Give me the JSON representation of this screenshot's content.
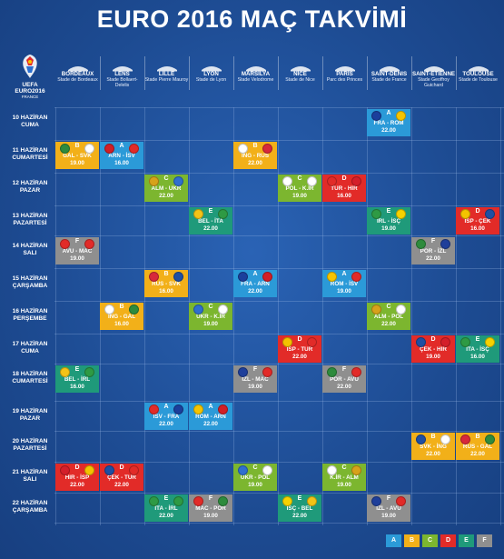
{
  "title": "EURO 2016 MAÇ TAKVİMİ",
  "logo": {
    "text": "UEFA EURO2016",
    "sub": "FRANCE"
  },
  "group_colors": {
    "A": "#2b9ad8",
    "B": "#f2b019",
    "C": "#7cb62f",
    "D": "#e22b28",
    "E": "#1f9a7a",
    "F": "#8f8f8f"
  },
  "venues": [
    {
      "city": "BORDEAUX",
      "stadium": "Stade de Bordeaux"
    },
    {
      "city": "LENS",
      "stadium": "Stade Bollaert-Delelis"
    },
    {
      "city": "LILLE",
      "stadium": "Stade Pierre Mauroy"
    },
    {
      "city": "LYON",
      "stadium": "Stade de Lyon"
    },
    {
      "city": "MARSİLYA",
      "stadium": "Stade Velodrome"
    },
    {
      "city": "NİCE",
      "stadium": "Stade de Nice"
    },
    {
      "city": "PARİS",
      "stadium": "Parc des Princes"
    },
    {
      "city": "SAINT-DENIS",
      "stadium": "Stade de France"
    },
    {
      "city": "SAINT-ETİENNE",
      "stadium": "Stade Geoffroy Guichard"
    },
    {
      "city": "TOULOUSE",
      "stadium": "Stade de Toulouse"
    }
  ],
  "days": [
    {
      "line1": "10 HAZİRAN",
      "line2": "CUMA"
    },
    {
      "line1": "11 HAZİRAN",
      "line2": "CUMARTESİ"
    },
    {
      "line1": "12 HAZİRAN",
      "line2": "PAZAR"
    },
    {
      "line1": "13 HAZİRAN",
      "line2": "PAZARTESİ"
    },
    {
      "line1": "14 HAZİRAN",
      "line2": "SALI"
    },
    {
      "line1": "15 HAZİRAN",
      "line2": "ÇARŞAMBA"
    },
    {
      "line1": "16 HAZİRAN",
      "line2": "PERŞEMBE"
    },
    {
      "line1": "17 HAZİRAN",
      "line2": "CUMA"
    },
    {
      "line1": "18 HAZİRAN",
      "line2": "CUMARTESİ"
    },
    {
      "line1": "19 HAZİRAN",
      "line2": "PAZAR"
    },
    {
      "line1": "20 HAZİRAN",
      "line2": "PAZARTESİ"
    },
    {
      "line1": "21 HAZİRAN",
      "line2": "SALI"
    },
    {
      "line1": "22 HAZİRAN",
      "line2": "ÇARŞAMBA"
    }
  ],
  "matches": [
    {
      "day": 0,
      "venue": 7,
      "group": "A",
      "teams": "FRA - ROM",
      "time": "22.00",
      "f1": "#1b3f9c",
      "f2": "#f5c400"
    },
    {
      "day": 1,
      "venue": 0,
      "group": "B",
      "teams": "GAL - SVK",
      "time": "19.00",
      "f1": "#2e8b3d",
      "f2": "#ffffff"
    },
    {
      "day": 1,
      "venue": 1,
      "group": "A",
      "teams": "ARN - İSV",
      "time": "16.00",
      "f1": "#d21f26",
      "f2": "#e22b28"
    },
    {
      "day": 1,
      "venue": 4,
      "group": "B",
      "teams": "İNG - RUS",
      "time": "22.00",
      "f1": "#ffffff",
      "f2": "#d8283a"
    },
    {
      "day": 2,
      "venue": 2,
      "group": "C",
      "teams": "ALM - UKR",
      "time": "22.00",
      "f1": "#d7a21a",
      "f2": "#2f6fce"
    },
    {
      "day": 2,
      "venue": 5,
      "group": "C",
      "teams": "POL - K.İR",
      "time": "19.00",
      "f1": "#ffffff",
      "f2": "#ffffff"
    },
    {
      "day": 2,
      "venue": 6,
      "group": "D",
      "teams": "TUR - HIR",
      "time": "16.00",
      "f1": "#e22b28",
      "f2": "#d41f2a"
    },
    {
      "day": 3,
      "venue": 3,
      "group": "E",
      "teams": "BEL - İTA",
      "time": "22.00",
      "f1": "#f3c317",
      "f2": "#2e9a44"
    },
    {
      "day": 3,
      "venue": 7,
      "group": "E",
      "teams": "İRL - İSÇ",
      "time": "19.00",
      "f1": "#2e9a44",
      "f2": "#f6d200"
    },
    {
      "day": 3,
      "venue": 9,
      "group": "D",
      "teams": "İSP - ÇEK",
      "time": "16.00",
      "f1": "#f4c300",
      "f2": "#1f4fa3"
    },
    {
      "day": 4,
      "venue": 0,
      "group": "F",
      "teams": "AVU - MAC",
      "time": "19.00",
      "f1": "#e22b28",
      "f2": "#e22b28"
    },
    {
      "day": 4,
      "venue": 8,
      "group": "F",
      "teams": "POR - İZL",
      "time": "22.00",
      "f1": "#2e8b3d",
      "f2": "#1f3f9a"
    },
    {
      "day": 5,
      "venue": 2,
      "group": "B",
      "teams": "RUS - SVK",
      "time": "16.00",
      "f1": "#d8283a",
      "f2": "#1f4fa3"
    },
    {
      "day": 5,
      "venue": 4,
      "group": "A",
      "teams": "FRA - ARN",
      "time": "22.00",
      "f1": "#1b3f9c",
      "f2": "#d21f26"
    },
    {
      "day": 5,
      "venue": 6,
      "group": "A",
      "teams": "ROM - İSV",
      "time": "19.00",
      "f1": "#f5c400",
      "f2": "#e22b28"
    },
    {
      "day": 6,
      "venue": 1,
      "group": "B",
      "teams": "İNG - GAL",
      "time": "16.00",
      "f1": "#ffffff",
      "f2": "#2e8b3d"
    },
    {
      "day": 6,
      "venue": 3,
      "group": "C",
      "teams": "UKR - K.İR",
      "time": "19.00",
      "f1": "#2f6fce",
      "f2": "#ffffff"
    },
    {
      "day": 6,
      "venue": 7,
      "group": "C",
      "teams": "ALM - POL",
      "time": "22.00",
      "f1": "#d7a21a",
      "f2": "#ffffff"
    },
    {
      "day": 7,
      "venue": 5,
      "group": "D",
      "teams": "İSP - TUR",
      "time": "22.00",
      "f1": "#f4c300",
      "f2": "#e22b28"
    },
    {
      "day": 7,
      "venue": 8,
      "group": "D",
      "teams": "ÇEK - HIR",
      "time": "19.00",
      "f1": "#1f4fa3",
      "f2": "#d41f2a"
    },
    {
      "day": 7,
      "venue": 9,
      "group": "E",
      "teams": "İTA - İSÇ",
      "time": "16.00",
      "f1": "#2e9a44",
      "f2": "#f6d200"
    },
    {
      "day": 8,
      "venue": 0,
      "group": "E",
      "teams": "BEL - İRL",
      "time": "16.00",
      "f1": "#f3c317",
      "f2": "#2e9a44"
    },
    {
      "day": 8,
      "venue": 4,
      "group": "F",
      "teams": "İZL - MAC",
      "time": "19.00",
      "f1": "#1f3f9a",
      "f2": "#e22b28"
    },
    {
      "day": 8,
      "venue": 6,
      "group": "F",
      "teams": "POR - AVU",
      "time": "22.00",
      "f1": "#2e8b3d",
      "f2": "#e22b28"
    },
    {
      "day": 9,
      "venue": 2,
      "group": "A",
      "teams": "İSV - FRA",
      "time": "22.00",
      "f1": "#e22b28",
      "f2": "#1b3f9c"
    },
    {
      "day": 9,
      "venue": 3,
      "group": "A",
      "teams": "ROM - ARN",
      "time": "22.00",
      "f1": "#f5c400",
      "f2": "#d21f26"
    },
    {
      "day": 10,
      "venue": 8,
      "group": "B",
      "teams": "SVK - İNG",
      "time": "22.00",
      "f1": "#1f4fa3",
      "f2": "#ffffff"
    },
    {
      "day": 10,
      "venue": 9,
      "group": "B",
      "teams": "RUS - GAL",
      "time": "22.00",
      "f1": "#d8283a",
      "f2": "#2e8b3d"
    },
    {
      "day": 11,
      "venue": 0,
      "group": "D",
      "teams": "HIR - İSP",
      "time": "22.00",
      "f1": "#d41f2a",
      "f2": "#f4c300"
    },
    {
      "day": 11,
      "venue": 1,
      "group": "D",
      "teams": "ÇEK - TUR",
      "time": "22.00",
      "f1": "#1f4fa3",
      "f2": "#e22b28"
    },
    {
      "day": 11,
      "venue": 4,
      "group": "C",
      "teams": "UKR - POL",
      "time": "19.00",
      "f1": "#2f6fce",
      "f2": "#ffffff"
    },
    {
      "day": 11,
      "venue": 6,
      "group": "C",
      "teams": "K.İR - ALM",
      "time": "19.00",
      "f1": "#ffffff",
      "f2": "#d7a21a"
    },
    {
      "day": 12,
      "venue": 2,
      "group": "E",
      "teams": "İTA - İRL",
      "time": "22.00",
      "f1": "#2e9a44",
      "f2": "#2e9a44"
    },
    {
      "day": 12,
      "venue": 3,
      "group": "F",
      "teams": "MAC - POR",
      "time": "19.00",
      "f1": "#e22b28",
      "f2": "#2e8b3d"
    },
    {
      "day": 12,
      "venue": 5,
      "group": "E",
      "teams": "İSÇ - BEL",
      "time": "22.00",
      "f1": "#f6d200",
      "f2": "#f3c317"
    },
    {
      "day": 12,
      "venue": 7,
      "group": "F",
      "teams": "İZL - AVU",
      "time": "19.00",
      "f1": "#1f3f9a",
      "f2": "#e22b28"
    }
  ],
  "legend": [
    "A",
    "B",
    "C",
    "D",
    "E",
    "F"
  ]
}
